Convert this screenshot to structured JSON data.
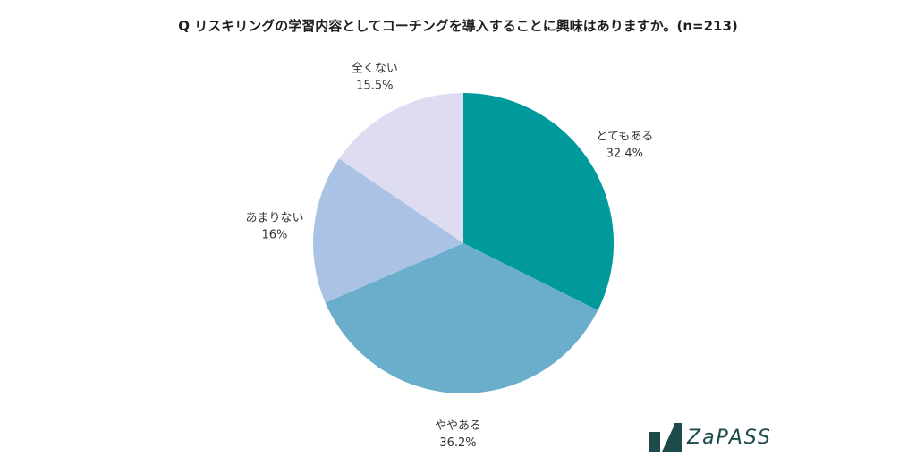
{
  "title": "Q リスキリングの学習内容としてコーチングを導入することに興味はありますか。(n=213)",
  "chart_data": {
    "type": "pie",
    "title": "Q リスキリングの学習内容としてコーチングを導入することに興味はありますか。(n=213)",
    "slices": [
      {
        "label": "とてもある",
        "value": 32.4,
        "value_label": "32.4%",
        "color": "#009A9C"
      },
      {
        "label": "ややある",
        "value": 36.2,
        "value_label": "36.2%",
        "color": "#6BAECB"
      },
      {
        "label": "あまりない",
        "value": 16,
        "value_label": "16%",
        "color": "#AAC2E4"
      },
      {
        "label": "全くない",
        "value": 15.5,
        "value_label": "15.5%",
        "color": "#DEDCF1"
      }
    ],
    "start": "top",
    "direction": "clockwise",
    "legend": "none"
  },
  "logo": {
    "text": "ZaPASS",
    "color": "#1d4a4a"
  }
}
